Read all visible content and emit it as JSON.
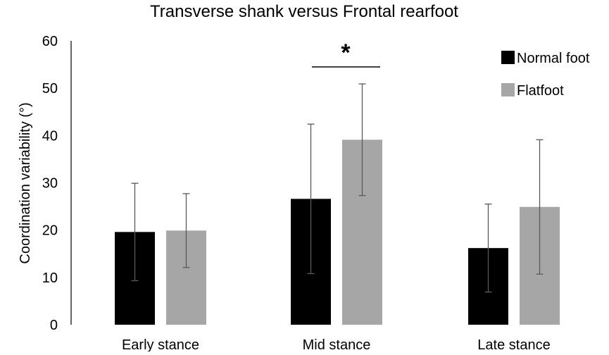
{
  "chart_data": {
    "type": "bar",
    "title": "Transverse shank versus Frontal rearfoot",
    "xlabel": "",
    "ylabel": "Coordination variability (°)",
    "ylim": [
      0,
      60
    ],
    "yticks": [
      0,
      10,
      20,
      30,
      40,
      50,
      60
    ],
    "grid": false,
    "legend_position": "top-right",
    "categories": [
      "Early stance",
      "Mid stance",
      "Late stance"
    ],
    "series": [
      {
        "name": "Normal foot",
        "color": "#000000",
        "values": [
          19.6,
          26.6,
          16.2
        ],
        "sd": [
          10.3,
          15.8,
          9.3
        ]
      },
      {
        "name": "Flatfoot",
        "color": "#a6a6a6",
        "values": [
          19.9,
          39.1,
          24.9
        ],
        "sd": [
          7.8,
          11.8,
          14.2
        ]
      }
    ],
    "annotations": [
      {
        "text": "*",
        "category": "Mid stance",
        "meaning": "significant difference"
      }
    ]
  }
}
